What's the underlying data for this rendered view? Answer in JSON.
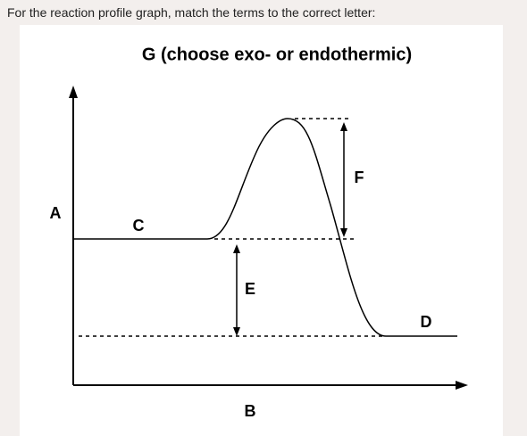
{
  "question": "For the reaction profile graph, match the terms to the correct letter:",
  "diagram": {
    "title": "G (choose exo- or endothermic)",
    "labels": [
      "A",
      "B",
      "C",
      "D",
      "E",
      "F"
    ]
  }
}
